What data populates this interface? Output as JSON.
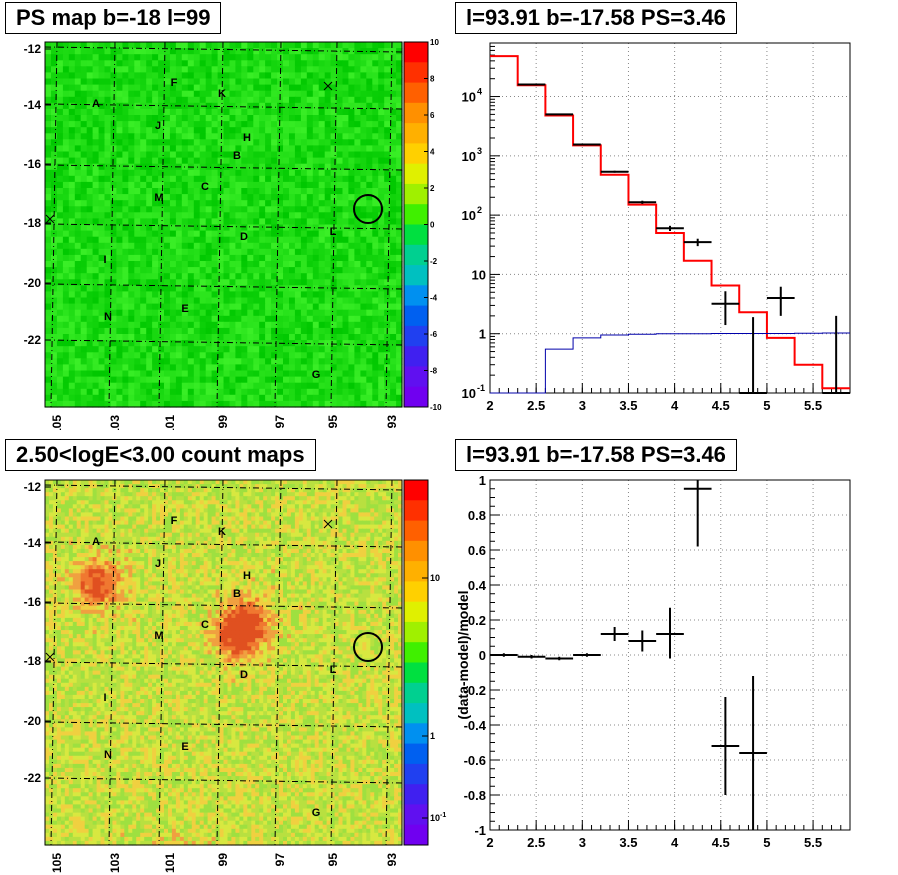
{
  "panels": {
    "tl_title": "PS map b=-18 l=99",
    "tr_title": "l=93.91 b=-17.58 PS=3.46",
    "bl_title": "2.50<logE<3.00 count maps",
    "br_title": "l=93.91 b=-17.58 PS=3.46"
  },
  "maps": {
    "ylabels": [
      "-12",
      "-14",
      "-16",
      "-18",
      "-20",
      "-22"
    ],
    "xlabels": [
      "105",
      "103",
      "101",
      "99",
      "97",
      "95",
      "93"
    ],
    "sources": [
      "A",
      "F",
      "K",
      "J",
      "H",
      "B",
      "C",
      "M",
      "D",
      "L",
      "I",
      "E",
      "N",
      "G"
    ],
    "ps_colorbar_labels": [
      "10",
      "8",
      "6",
      "4",
      "2",
      "0",
      "-2",
      "-4",
      "-6",
      "-8",
      "-10"
    ],
    "count_colorbar_labels": [
      "10",
      "1",
      "10"
    ],
    "count_colorbar_sup": [
      "",
      "",
      "-1"
    ]
  },
  "chart_data": [
    {
      "type": "line",
      "title": "l=93.91 b=-17.58 PS=3.46",
      "xlabel": "",
      "ylabel": "",
      "xlim": [
        2,
        5.9
      ],
      "ylim": [
        0.1,
        80000
      ],
      "yscale": "log",
      "xticks": [
        "2",
        "2.5",
        "3",
        "3.5",
        "4",
        "4.5",
        "5",
        "5.5"
      ],
      "yticks": [
        "10^{-1}",
        "1",
        "10",
        "10^{2}",
        "10^{3}",
        "10^{4}"
      ],
      "series": [
        {
          "color": "#ff0000",
          "style": "histogram",
          "bin_edges": [
            2.0,
            2.3,
            2.6,
            2.9,
            3.2,
            3.5,
            3.8,
            4.1,
            4.4,
            4.7,
            5.0,
            5.3,
            5.6,
            5.9
          ],
          "values": [
            48000,
            15500,
            4800,
            1500,
            480,
            150,
            50,
            17,
            6.5,
            2.3,
            0.85,
            0.3,
            0.12
          ]
        },
        {
          "color": "#0000aa",
          "style": "histogram",
          "bin_edges": [
            2.0,
            2.3,
            2.6,
            2.9,
            3.2,
            3.5,
            3.8,
            4.1,
            4.4,
            4.7,
            5.0,
            5.3,
            5.6,
            5.9
          ],
          "values": [
            0.08,
            0.1,
            0.55,
            0.85,
            0.95,
            0.98,
            1.0,
            1.0,
            1.01,
            1.01,
            1.01,
            1.02,
            1.03
          ]
        },
        {
          "color": "#000000",
          "style": "points",
          "x": [
            2.45,
            2.75,
            3.05,
            3.35,
            3.65,
            3.95,
            4.25,
            4.55,
            4.85,
            5.15,
            5.75
          ],
          "y": [
            16000,
            5000,
            1550,
            540,
            165,
            60,
            35,
            3.2,
            0.1,
            4.0,
            0.1
          ],
          "ylow": [
            15800,
            4900,
            1500,
            520,
            155,
            54,
            30,
            1.4,
            0.1,
            2.0,
            0.1
          ],
          "yhigh": [
            16200,
            5100,
            1600,
            560,
            175,
            66,
            40,
            5.2,
            1.9,
            6.2,
            2.0
          ],
          "xerr": 0.15
        }
      ]
    },
    {
      "type": "scatter",
      "title": "l=93.91 b=-17.58 PS=3.46",
      "xlabel": "",
      "ylabel": "(data-model)/model",
      "xlim": [
        2,
        5.9
      ],
      "ylim": [
        -1,
        1
      ],
      "xticks": [
        "2",
        "2.5",
        "3",
        "3.5",
        "4",
        "4.5",
        "5",
        "5.5"
      ],
      "yticks": [
        "-1",
        "-0.8",
        "-0.6",
        "-0.4",
        "-0.2",
        "0",
        "0.2",
        "0.4",
        "0.6",
        "0.8",
        "1"
      ],
      "series": [
        {
          "color": "#000000",
          "x": [
            2.15,
            2.45,
            2.75,
            3.05,
            3.35,
            3.65,
            3.95,
            4.25,
            4.55,
            4.85
          ],
          "y": [
            0.0,
            -0.01,
            -0.02,
            0.0,
            0.12,
            0.08,
            0.12,
            0.95,
            -0.52,
            -0.56
          ],
          "ylow": [
            -0.01,
            -0.02,
            -0.03,
            -0.01,
            0.08,
            0.02,
            -0.02,
            0.62,
            -0.8,
            -1.0
          ],
          "yhigh": [
            0.01,
            0.0,
            -0.01,
            0.01,
            0.16,
            0.14,
            0.27,
            1.0,
            -0.24,
            -0.12
          ],
          "xerr": 0.15
        }
      ]
    }
  ]
}
